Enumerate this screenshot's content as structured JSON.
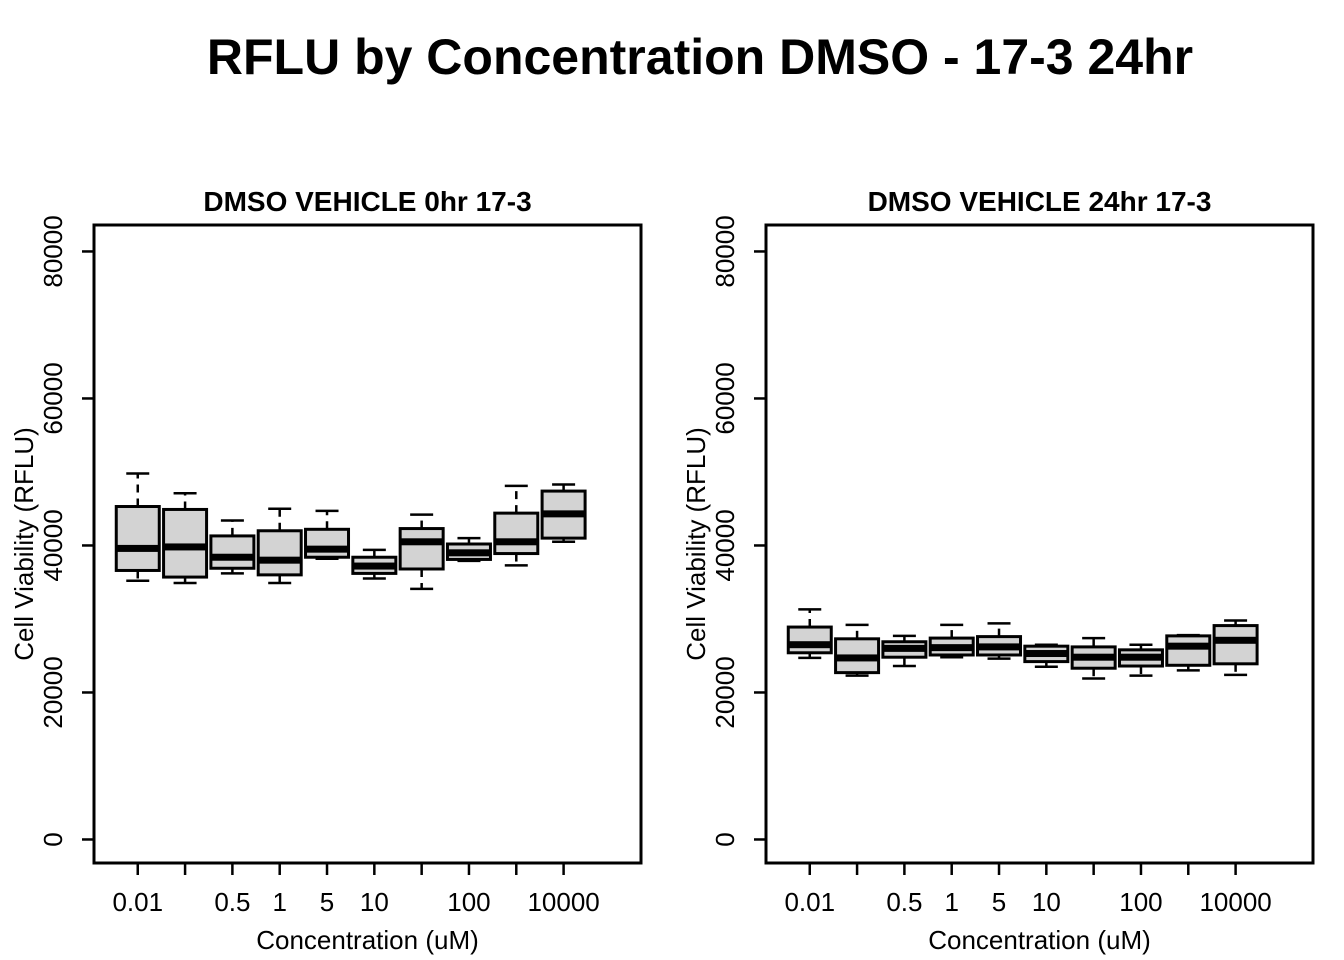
{
  "title": "RFLU by Concentration DMSO - 17-3 24hr",
  "colors": {
    "box_fill": "#d3d3d3",
    "stroke": "#000000",
    "background": "#ffffff"
  },
  "chart_data": [
    {
      "type": "boxplot",
      "title": "DMSO VEHICLE 0hr 17-3",
      "xlabel": "Concentration (uM)",
      "ylabel": "Cell Viability (RFLU)",
      "ylim": [
        -3200,
        83600
      ],
      "yticks": [
        0,
        20000,
        40000,
        60000,
        80000
      ],
      "grid": false,
      "legend": null,
      "categories": [
        "0.01",
        "",
        "0.5",
        "1",
        "5",
        "10",
        "",
        "100",
        "",
        "10000"
      ],
      "boxes": [
        {
          "lo": 35200,
          "q1": 36600,
          "med": 39600,
          "q3": 45300,
          "hi": 49800
        },
        {
          "lo": 34900,
          "q1": 35700,
          "med": 39800,
          "q3": 44900,
          "hi": 47100
        },
        {
          "lo": 36200,
          "q1": 36900,
          "med": 38400,
          "q3": 41300,
          "hi": 43400
        },
        {
          "lo": 34900,
          "q1": 36000,
          "med": 38000,
          "q3": 42000,
          "hi": 45000
        },
        {
          "lo": 38200,
          "q1": 38400,
          "med": 39500,
          "q3": 42200,
          "hi": 44700
        },
        {
          "lo": 35500,
          "q1": 36200,
          "med": 37200,
          "q3": 38400,
          "hi": 39400
        },
        {
          "lo": 34100,
          "q1": 36800,
          "med": 40500,
          "q3": 42300,
          "hi": 44200
        },
        {
          "lo": 37900,
          "q1": 38100,
          "med": 39000,
          "q3": 40200,
          "hi": 41000
        },
        {
          "lo": 37300,
          "q1": 38900,
          "med": 40500,
          "q3": 44400,
          "hi": 48100
        },
        {
          "lo": 40500,
          "q1": 41000,
          "med": 44300,
          "q3": 47400,
          "hi": 48300
        }
      ]
    },
    {
      "type": "boxplot",
      "title": "DMSO VEHICLE 24hr 17-3",
      "xlabel": "Concentration (uM)",
      "ylabel": "Cell Viability (RFLU)",
      "ylim": [
        -3200,
        83600
      ],
      "yticks": [
        0,
        20000,
        40000,
        60000,
        80000
      ],
      "grid": false,
      "legend": null,
      "categories": [
        "0.01",
        "",
        "0.5",
        "1",
        "5",
        "10",
        "",
        "100",
        "",
        "10000"
      ],
      "boxes": [
        {
          "lo": 24700,
          "q1": 25400,
          "med": 26500,
          "q3": 28900,
          "hi": 31300
        },
        {
          "lo": 22300,
          "q1": 22700,
          "med": 24700,
          "q3": 27300,
          "hi": 29200
        },
        {
          "lo": 23600,
          "q1": 24800,
          "med": 26000,
          "q3": 26900,
          "hi": 27700
        },
        {
          "lo": 24800,
          "q1": 25100,
          "med": 26100,
          "q3": 27400,
          "hi": 29200
        },
        {
          "lo": 24600,
          "q1": 25100,
          "med": 26200,
          "q3": 27600,
          "hi": 29400
        },
        {
          "lo": 23500,
          "q1": 24200,
          "med": 25300,
          "q3": 26300,
          "hi": 26500
        },
        {
          "lo": 21900,
          "q1": 23300,
          "med": 24800,
          "q3": 26200,
          "hi": 27400
        },
        {
          "lo": 22300,
          "q1": 23600,
          "med": 24800,
          "q3": 25800,
          "hi": 26500
        },
        {
          "lo": 23000,
          "q1": 23700,
          "med": 26300,
          "q3": 27700,
          "hi": 27800
        },
        {
          "lo": 22400,
          "q1": 23900,
          "med": 27100,
          "q3": 29100,
          "hi": 29800
        }
      ]
    }
  ]
}
